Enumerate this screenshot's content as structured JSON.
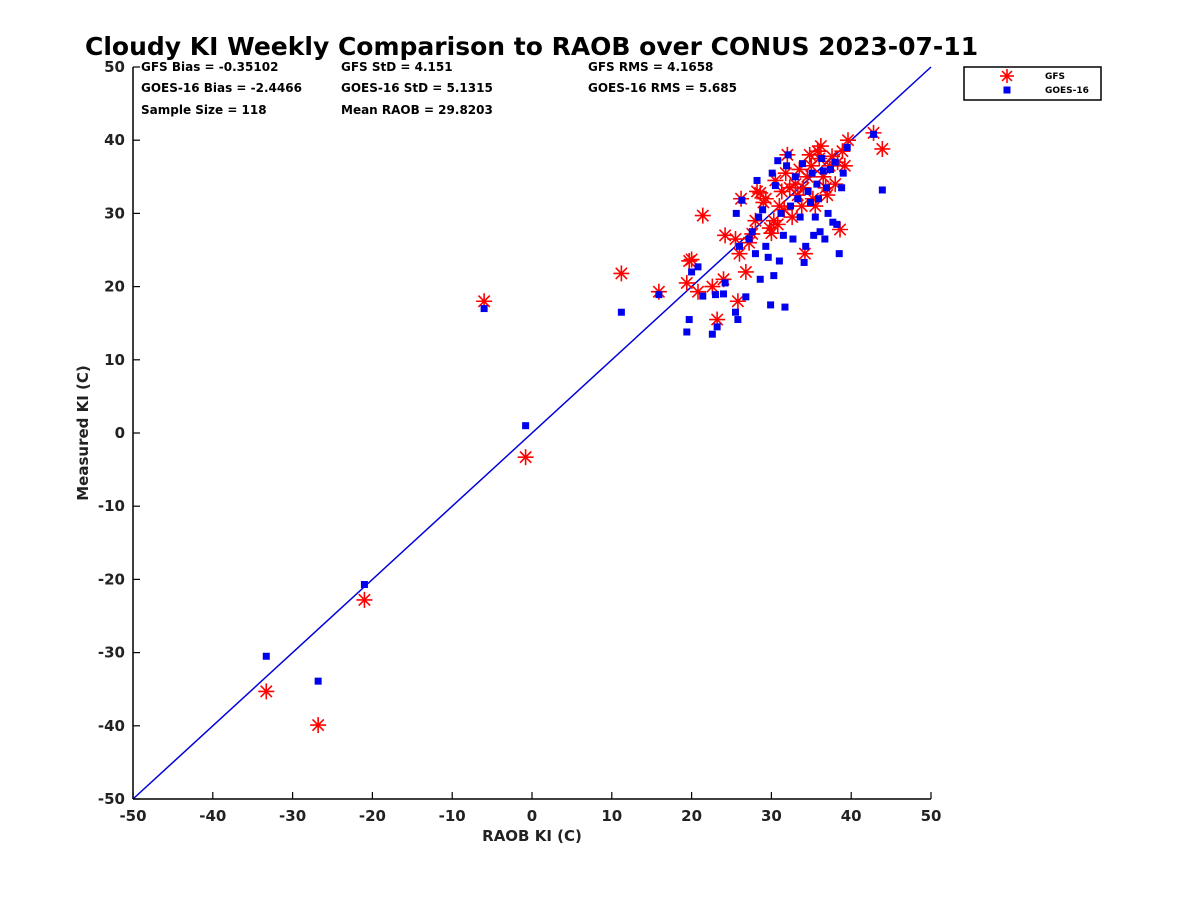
{
  "chart_data": {
    "type": "scatter",
    "title": "Cloudy KI Weekly Comparison to RAOB over CONUS 2023-07-11",
    "xlabel": "RAOB KI (C)",
    "ylabel": "Measured KI (C)",
    "xlim": [
      -50,
      50
    ],
    "ylim": [
      -50,
      50
    ],
    "xticks": [
      -50,
      -40,
      -30,
      -20,
      -10,
      0,
      10,
      20,
      30,
      40,
      50
    ],
    "yticks": [
      -50,
      -40,
      -30,
      -20,
      -10,
      0,
      10,
      20,
      30,
      40,
      50
    ],
    "grid": false,
    "legend_position": "outside-top-right",
    "reference_line": {
      "x": [
        -50,
        50
      ],
      "y": [
        -50,
        50
      ],
      "color": "#0000dd"
    },
    "stats": [
      [
        "GFS Bias = -0.35102",
        "GFS StD = 4.151",
        "GFS RMS = 4.1658"
      ],
      [
        "GOES-16 Bias = -2.4466",
        "GOES-16 StD = 5.1315",
        "GOES-16 RMS = 5.685"
      ],
      [
        "Sample Size = 118",
        "Mean RAOB = 29.8203",
        ""
      ]
    ],
    "series": [
      {
        "name": "GFS",
        "marker": "asterisk",
        "color": "#ff0000",
        "points": [
          [
            -33.3,
            -35.3
          ],
          [
            -26.8,
            -39.9
          ],
          [
            -21.0,
            -22.8
          ],
          [
            -6.0,
            18.0
          ],
          [
            -0.8,
            -3.3
          ],
          [
            11.2,
            21.8
          ],
          [
            15.9,
            19.3
          ],
          [
            19.4,
            20.5
          ],
          [
            19.7,
            23.5
          ],
          [
            20.0,
            23.7
          ],
          [
            20.8,
            19.3
          ],
          [
            21.4,
            29.7
          ],
          [
            22.6,
            20.0
          ],
          [
            23.2,
            15.5
          ],
          [
            24.0,
            21.0
          ],
          [
            24.2,
            27.0
          ],
          [
            25.5,
            26.5
          ],
          [
            25.8,
            18.0
          ],
          [
            26.0,
            24.5
          ],
          [
            26.2,
            32.0
          ],
          [
            26.8,
            22.0
          ],
          [
            27.2,
            26.0
          ],
          [
            27.6,
            27.2
          ],
          [
            28.0,
            29.0
          ],
          [
            28.2,
            33.0
          ],
          [
            28.6,
            32.8
          ],
          [
            29.0,
            31.5
          ],
          [
            29.3,
            32.0
          ],
          [
            29.8,
            28.0
          ],
          [
            30.0,
            27.3
          ],
          [
            30.3,
            29.0
          ],
          [
            30.5,
            34.5
          ],
          [
            30.8,
            28.5
          ],
          [
            31.0,
            31.0
          ],
          [
            31.3,
            33.0
          ],
          [
            31.6,
            30.5
          ],
          [
            31.8,
            35.5
          ],
          [
            32.0,
            38.0
          ],
          [
            32.3,
            33.5
          ],
          [
            32.6,
            29.5
          ],
          [
            33.0,
            34.0
          ],
          [
            33.3,
            32.5
          ],
          [
            33.5,
            36.0
          ],
          [
            33.8,
            31.0
          ],
          [
            34.0,
            33.5
          ],
          [
            34.2,
            24.5
          ],
          [
            34.5,
            35.0
          ],
          [
            34.8,
            38.0
          ],
          [
            35.0,
            36.5
          ],
          [
            35.2,
            32.0
          ],
          [
            35.5,
            31.0
          ],
          [
            35.8,
            38.5
          ],
          [
            36.0,
            37.5
          ],
          [
            36.2,
            39.2
          ],
          [
            36.5,
            35.0
          ],
          [
            36.8,
            33.5
          ],
          [
            37.0,
            32.5
          ],
          [
            37.3,
            36.5
          ],
          [
            37.6,
            37.8
          ],
          [
            38.0,
            34.0
          ],
          [
            38.3,
            37.0
          ],
          [
            38.6,
            27.8
          ],
          [
            38.9,
            38.5
          ],
          [
            39.2,
            36.5
          ],
          [
            39.6,
            40.0
          ],
          [
            42.8,
            41.0
          ],
          [
            43.9,
            38.8
          ]
        ]
      },
      {
        "name": "GOES-16",
        "marker": "square",
        "color": "#0000ee",
        "points": [
          [
            -33.3,
            -30.5
          ],
          [
            -26.8,
            -33.9
          ],
          [
            -21.0,
            -20.7
          ],
          [
            -6.0,
            17.0
          ],
          [
            -0.8,
            1.0
          ],
          [
            11.2,
            16.5
          ],
          [
            15.9,
            18.9
          ],
          [
            19.4,
            13.8
          ],
          [
            19.7,
            15.5
          ],
          [
            20.0,
            22.0
          ],
          [
            20.8,
            22.7
          ],
          [
            21.4,
            18.7
          ],
          [
            22.6,
            13.5
          ],
          [
            23.0,
            18.9
          ],
          [
            23.2,
            14.5
          ],
          [
            24.0,
            19.0
          ],
          [
            24.2,
            20.5
          ],
          [
            25.5,
            16.5
          ],
          [
            25.6,
            30.0
          ],
          [
            25.8,
            15.5
          ],
          [
            26.0,
            25.5
          ],
          [
            26.3,
            31.8
          ],
          [
            26.8,
            18.6
          ],
          [
            27.2,
            26.5
          ],
          [
            27.6,
            27.5
          ],
          [
            28.0,
            24.5
          ],
          [
            28.2,
            34.5
          ],
          [
            28.4,
            29.5
          ],
          [
            28.6,
            21.0
          ],
          [
            28.9,
            30.5
          ],
          [
            29.3,
            25.5
          ],
          [
            29.6,
            24.0
          ],
          [
            29.9,
            17.5
          ],
          [
            30.1,
            35.5
          ],
          [
            30.3,
            21.5
          ],
          [
            30.5,
            33.8
          ],
          [
            30.8,
            37.2
          ],
          [
            31.0,
            23.5
          ],
          [
            31.2,
            30.0
          ],
          [
            31.5,
            27.0
          ],
          [
            31.7,
            17.2
          ],
          [
            31.9,
            36.5
          ],
          [
            32.1,
            38.0
          ],
          [
            32.4,
            31.0
          ],
          [
            32.7,
            26.5
          ],
          [
            33.0,
            35.0
          ],
          [
            33.3,
            32.0
          ],
          [
            33.6,
            29.5
          ],
          [
            33.9,
            36.8
          ],
          [
            34.1,
            23.3
          ],
          [
            34.3,
            25.5
          ],
          [
            34.6,
            33.0
          ],
          [
            34.9,
            31.5
          ],
          [
            35.1,
            35.5
          ],
          [
            35.3,
            27.0
          ],
          [
            35.5,
            29.5
          ],
          [
            35.7,
            34.0
          ],
          [
            35.9,
            32.0
          ],
          [
            36.1,
            27.5
          ],
          [
            36.3,
            37.5
          ],
          [
            36.5,
            35.8
          ],
          [
            36.7,
            26.5
          ],
          [
            36.9,
            33.5
          ],
          [
            37.1,
            30.0
          ],
          [
            37.4,
            36.0
          ],
          [
            37.7,
            28.8
          ],
          [
            38.0,
            37.0
          ],
          [
            38.2,
            28.5
          ],
          [
            38.5,
            24.5
          ],
          [
            38.8,
            33.5
          ],
          [
            39.0,
            35.5
          ],
          [
            39.5,
            39.0
          ],
          [
            42.8,
            40.8
          ],
          [
            43.9,
            33.2
          ]
        ]
      }
    ]
  }
}
